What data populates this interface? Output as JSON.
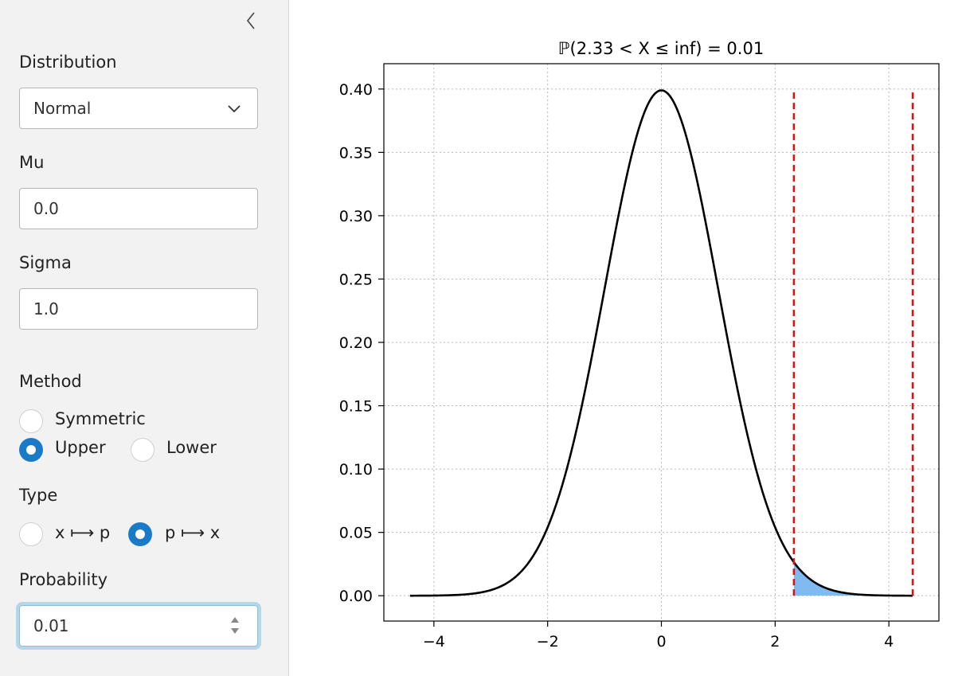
{
  "sidebar": {
    "distribution_label": "Distribution",
    "distribution_value": "Normal",
    "mu_label": "Mu",
    "mu_value": "0.0",
    "sigma_label": "Sigma",
    "sigma_value": "1.0",
    "method_label": "Method",
    "method_options": [
      "Symmetric",
      "Upper",
      "Lower"
    ],
    "method_selected": "Upper",
    "type_label": "Type",
    "type_options": [
      "x ⟼ p",
      "p ⟼ x"
    ],
    "type_selected": "p ⟼ x",
    "probability_label": "Probability",
    "probability_value": "0.01"
  },
  "colors": {
    "accent": "#1a7ac8",
    "curve": "#000000",
    "fill": "#7fbaf0",
    "cutoff_line": "#e01010"
  },
  "chart_data": {
    "type": "line",
    "title": "ℙ(2.33 < X ≤ inf) = 0.01",
    "distribution": "normal",
    "mu": 0.0,
    "sigma": 1.0,
    "x_range": [
      -4.42,
      4.42
    ],
    "xlim": [
      -4.88,
      4.88
    ],
    "ylim": [
      -0.02,
      0.42
    ],
    "xticks": [
      -4,
      -2,
      0,
      2,
      4
    ],
    "xtick_labels": [
      "−4",
      "−2",
      "0",
      "2",
      "4"
    ],
    "yticks": [
      0.0,
      0.05,
      0.1,
      0.15,
      0.2,
      0.25,
      0.3,
      0.35,
      0.4
    ],
    "ytick_labels": [
      "0.00",
      "0.05",
      "0.10",
      "0.15",
      "0.20",
      "0.25",
      "0.30",
      "0.35",
      "0.40"
    ],
    "shaded_region": [
      2.33,
      4.42
    ],
    "cutoff_lines": [
      2.33,
      4.42
    ],
    "grid": true
  }
}
